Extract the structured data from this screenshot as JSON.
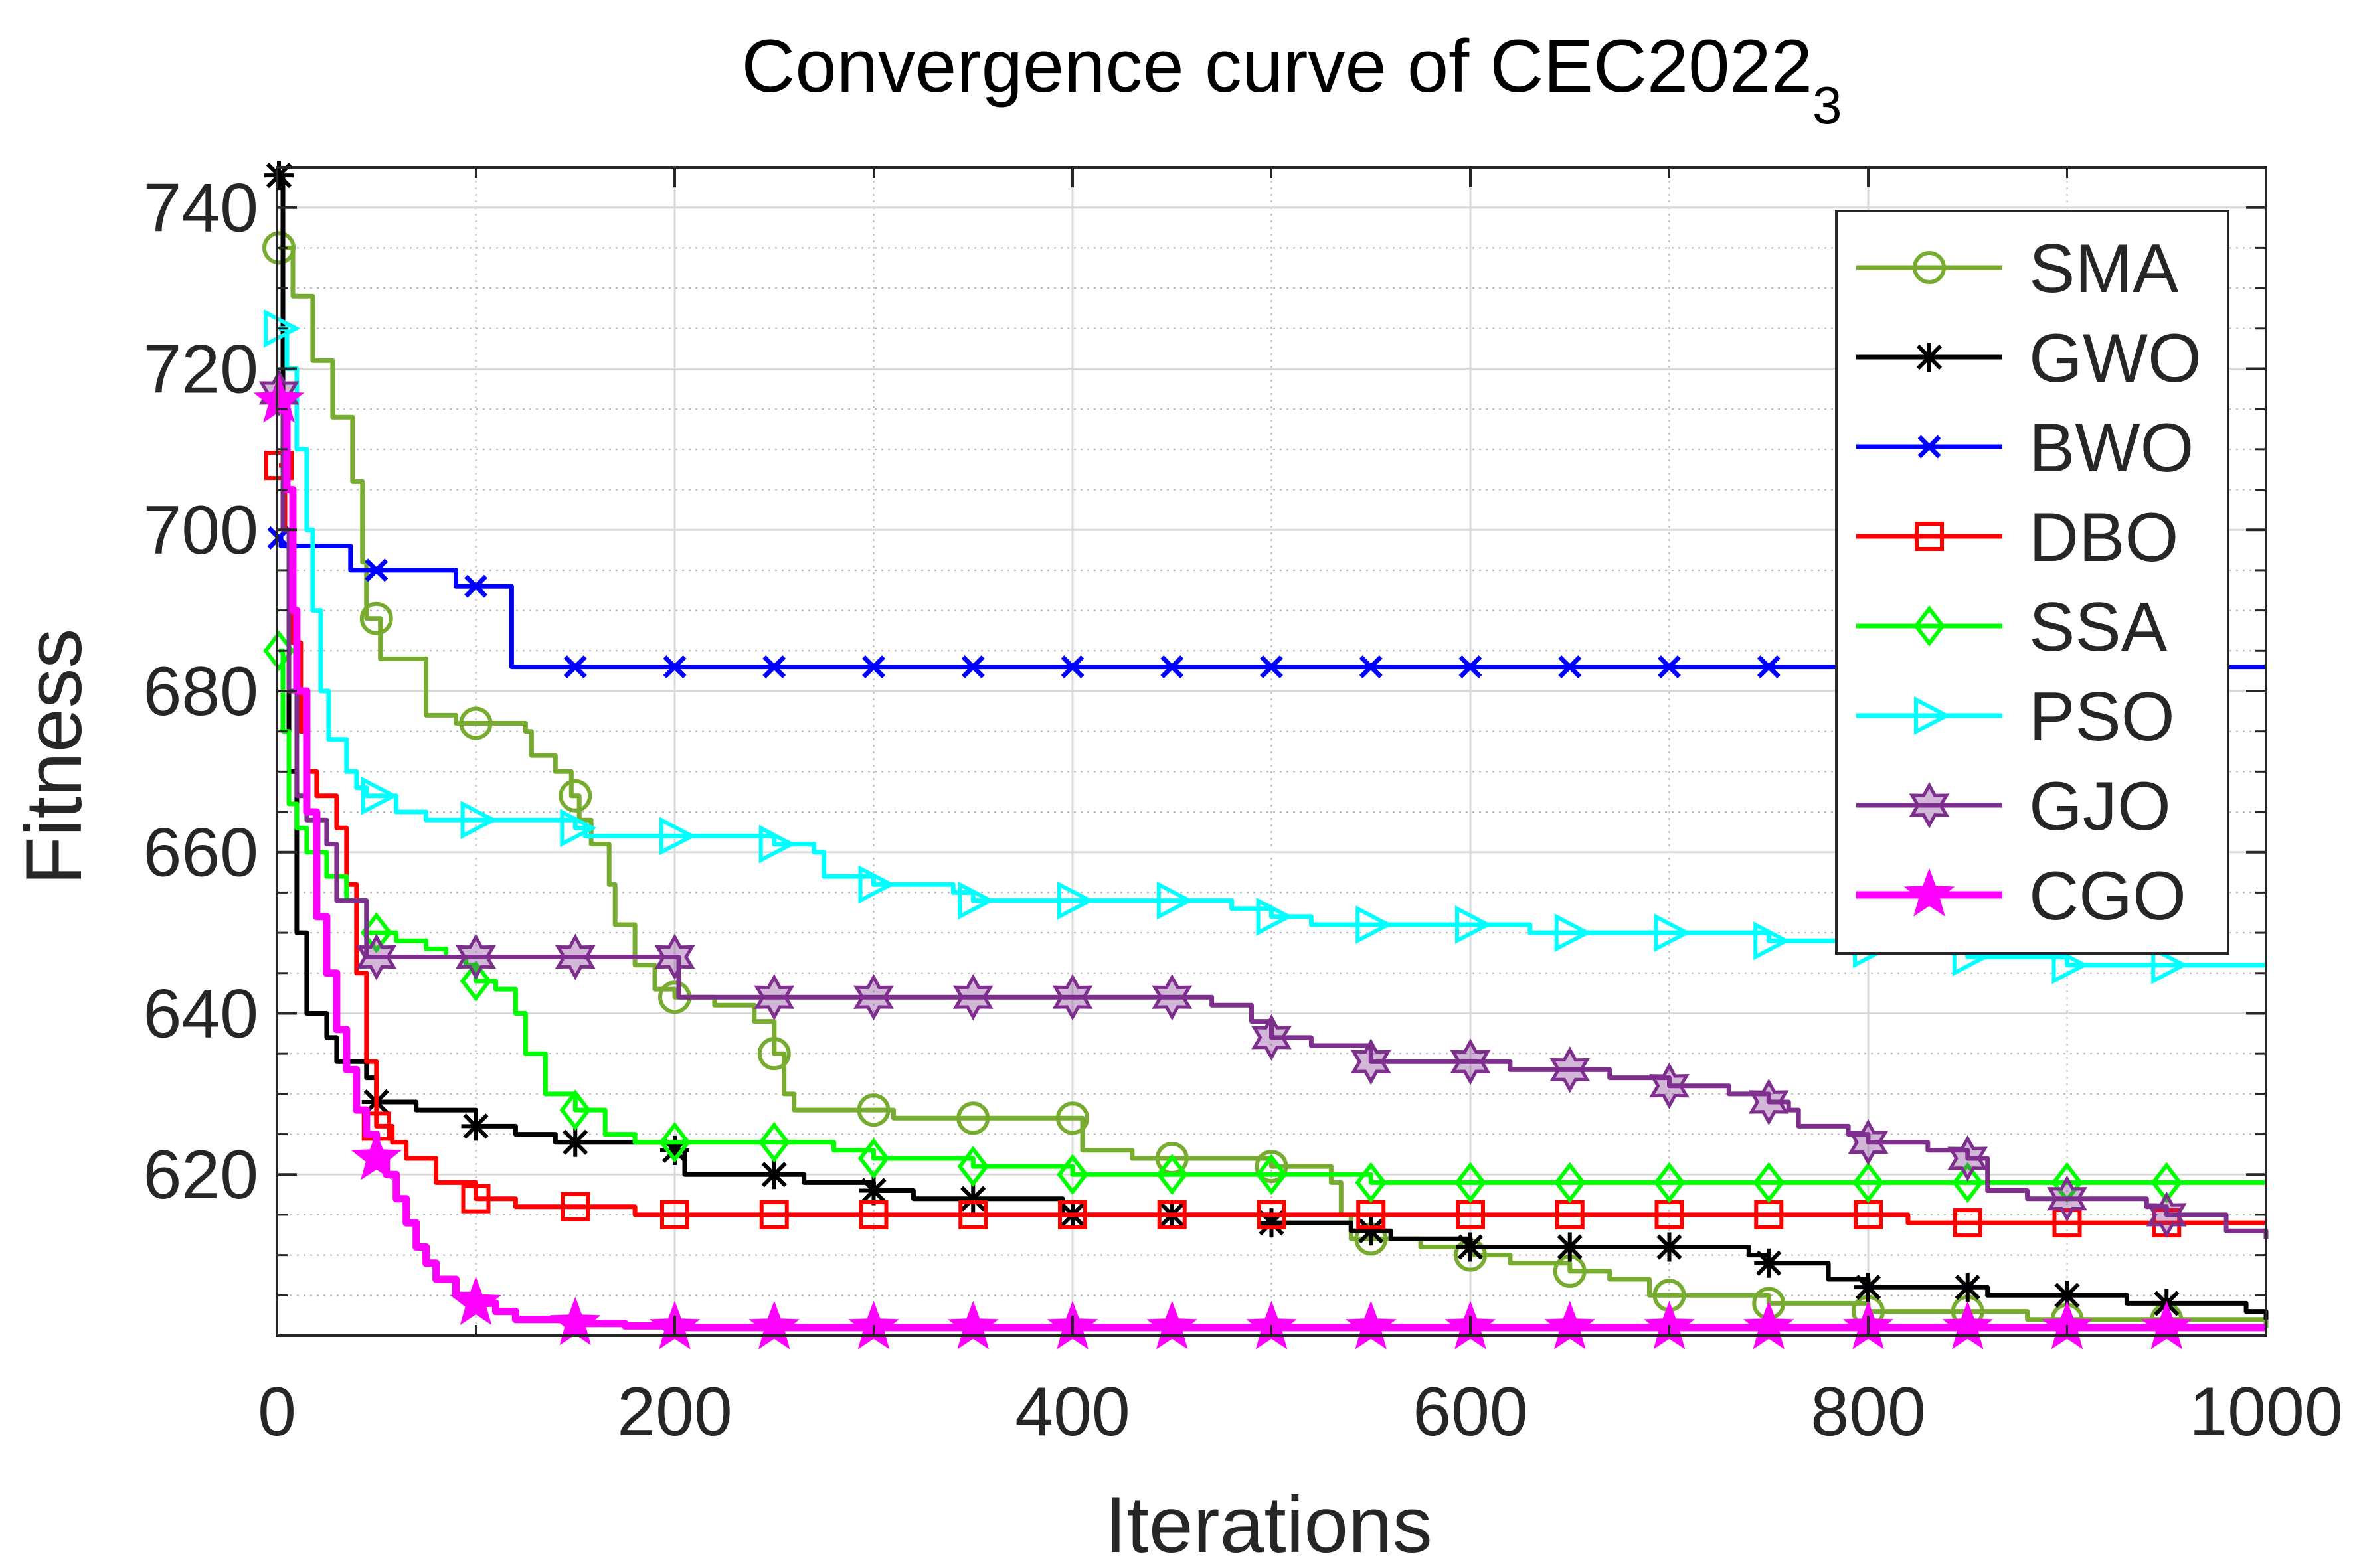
{
  "chart_data": {
    "type": "line",
    "title": "Convergence curve of CEC2022",
    "title_subscript": "3",
    "xlabel": "Iterations",
    "ylabel": "Fitness",
    "xlim": [
      0,
      1000
    ],
    "ylim": [
      600,
      745
    ],
    "xticks": [
      0,
      200,
      400,
      600,
      800,
      1000
    ],
    "yticks": [
      620,
      640,
      660,
      680,
      700,
      720,
      740
    ],
    "grid": true,
    "legend_position": "top-right",
    "series": [
      {
        "name": "SMA",
        "color": "#77AC30",
        "marker": "circle",
        "points": [
          [
            1,
            735
          ],
          [
            8,
            729
          ],
          [
            18,
            721
          ],
          [
            28,
            714
          ],
          [
            38,
            706
          ],
          [
            43,
            696
          ],
          [
            45,
            689
          ],
          [
            52,
            684
          ],
          [
            72,
            684
          ],
          [
            75,
            677
          ],
          [
            90,
            676
          ],
          [
            125,
            675
          ],
          [
            128,
            672
          ],
          [
            140,
            670
          ],
          [
            148,
            667
          ],
          [
            152,
            664
          ],
          [
            158,
            661
          ],
          [
            165,
            661
          ],
          [
            167,
            656
          ],
          [
            170,
            651
          ],
          [
            180,
            646
          ],
          [
            190,
            643
          ],
          [
            200,
            642
          ],
          [
            220,
            641
          ],
          [
            240,
            639
          ],
          [
            250,
            635
          ],
          [
            255,
            630
          ],
          [
            260,
            628
          ],
          [
            300,
            628
          ],
          [
            310,
            627
          ],
          [
            350,
            627
          ],
          [
            400,
            627
          ],
          [
            405,
            623
          ],
          [
            430,
            622
          ],
          [
            450,
            622
          ],
          [
            500,
            621
          ],
          [
            520,
            621
          ],
          [
            530,
            619
          ],
          [
            535,
            615
          ],
          [
            540,
            612
          ],
          [
            560,
            612
          ],
          [
            575,
            611
          ],
          [
            600,
            610
          ],
          [
            620,
            609
          ],
          [
            650,
            608
          ],
          [
            670,
            607
          ],
          [
            690,
            605
          ],
          [
            720,
            605
          ],
          [
            750,
            604
          ],
          [
            780,
            604
          ],
          [
            800,
            603
          ],
          [
            850,
            603
          ],
          [
            880,
            602
          ],
          [
            900,
            602
          ],
          [
            1000,
            601
          ]
        ]
      },
      {
        "name": "GWO",
        "color": "#000000",
        "marker": "asterisk",
        "points": [
          [
            1,
            744
          ],
          [
            3,
            700
          ],
          [
            6,
            670
          ],
          [
            10,
            650
          ],
          [
            15,
            640
          ],
          [
            25,
            637
          ],
          [
            30,
            634
          ],
          [
            45,
            632
          ],
          [
            50,
            629
          ],
          [
            60,
            629
          ],
          [
            70,
            628
          ],
          [
            100,
            626
          ],
          [
            120,
            625
          ],
          [
            140,
            624
          ],
          [
            150,
            624
          ],
          [
            200,
            623
          ],
          [
            205,
            620
          ],
          [
            240,
            620
          ],
          [
            250,
            620
          ],
          [
            265,
            619
          ],
          [
            300,
            618
          ],
          [
            320,
            617
          ],
          [
            350,
            617
          ],
          [
            390,
            617
          ],
          [
            395,
            615
          ],
          [
            450,
            615
          ],
          [
            500,
            614
          ],
          [
            540,
            613
          ],
          [
            560,
            612
          ],
          [
            600,
            611
          ],
          [
            620,
            611
          ],
          [
            650,
            611
          ],
          [
            700,
            611
          ],
          [
            740,
            610
          ],
          [
            750,
            609
          ],
          [
            780,
            607
          ],
          [
            800,
            606
          ],
          [
            850,
            606
          ],
          [
            860,
            605
          ],
          [
            900,
            605
          ],
          [
            930,
            604
          ],
          [
            950,
            604
          ],
          [
            990,
            603
          ],
          [
            1000,
            602
          ]
        ]
      },
      {
        "name": "BWO",
        "color": "#0000FF",
        "marker": "cross",
        "points": [
          [
            1,
            699
          ],
          [
            2,
            698
          ],
          [
            35,
            698
          ],
          [
            37,
            695
          ],
          [
            90,
            693
          ],
          [
            100,
            693
          ],
          [
            117,
            693
          ],
          [
            118,
            683
          ],
          [
            150,
            683
          ],
          [
            200,
            683
          ],
          [
            1000,
            683
          ]
        ]
      },
      {
        "name": "DBO",
        "color": "#FF0000",
        "marker": "square",
        "points": [
          [
            1,
            708
          ],
          [
            4,
            700
          ],
          [
            8,
            686
          ],
          [
            12,
            675
          ],
          [
            15,
            670
          ],
          [
            20,
            667
          ],
          [
            25,
            667
          ],
          [
            30,
            663
          ],
          [
            35,
            656
          ],
          [
            40,
            645
          ],
          [
            45,
            634
          ],
          [
            50,
            626
          ],
          [
            58,
            624
          ],
          [
            65,
            622
          ],
          [
            80,
            619
          ],
          [
            100,
            617
          ],
          [
            120,
            616
          ],
          [
            150,
            616
          ],
          [
            180,
            615
          ],
          [
            200,
            615
          ],
          [
            250,
            615
          ],
          [
            300,
            615
          ],
          [
            400,
            615
          ],
          [
            500,
            615
          ],
          [
            600,
            615
          ],
          [
            800,
            615
          ],
          [
            820,
            614
          ],
          [
            850,
            614
          ],
          [
            1000,
            614
          ]
        ]
      },
      {
        "name": "SSA",
        "color": "#00FF00",
        "marker": "diamond",
        "points": [
          [
            1,
            685
          ],
          [
            3,
            675
          ],
          [
            6,
            666
          ],
          [
            10,
            663
          ],
          [
            15,
            660
          ],
          [
            25,
            657
          ],
          [
            35,
            654
          ],
          [
            45,
            650
          ],
          [
            50,
            650
          ],
          [
            60,
            649
          ],
          [
            75,
            648
          ],
          [
            85,
            647
          ],
          [
            95,
            646
          ],
          [
            100,
            644
          ],
          [
            110,
            643
          ],
          [
            120,
            640
          ],
          [
            125,
            635
          ],
          [
            135,
            630
          ],
          [
            150,
            628
          ],
          [
            165,
            625
          ],
          [
            180,
            624
          ],
          [
            200,
            624
          ],
          [
            230,
            624
          ],
          [
            250,
            624
          ],
          [
            280,
            623
          ],
          [
            300,
            622
          ],
          [
            350,
            621
          ],
          [
            380,
            621
          ],
          [
            400,
            620
          ],
          [
            430,
            620
          ],
          [
            460,
            620
          ],
          [
            500,
            620
          ],
          [
            530,
            620
          ],
          [
            545,
            620
          ],
          [
            550,
            619
          ],
          [
            1000,
            619
          ]
        ]
      },
      {
        "name": "PSO",
        "color": "#00FFFF",
        "marker": "triangle-right",
        "points": [
          [
            1,
            725
          ],
          [
            5,
            720
          ],
          [
            10,
            710
          ],
          [
            15,
            700
          ],
          [
            18,
            690
          ],
          [
            22,
            680
          ],
          [
            26,
            674
          ],
          [
            35,
            670
          ],
          [
            40,
            668
          ],
          [
            45,
            667
          ],
          [
            60,
            665
          ],
          [
            75,
            664
          ],
          [
            100,
            664
          ],
          [
            150,
            663
          ],
          [
            155,
            662
          ],
          [
            200,
            662
          ],
          [
            250,
            661
          ],
          [
            270,
            660
          ],
          [
            275,
            657
          ],
          [
            300,
            656
          ],
          [
            320,
            656
          ],
          [
            340,
            655
          ],
          [
            350,
            654
          ],
          [
            400,
            654
          ],
          [
            450,
            654
          ],
          [
            480,
            653
          ],
          [
            500,
            652
          ],
          [
            520,
            651
          ],
          [
            550,
            651
          ],
          [
            600,
            651
          ],
          [
            630,
            650
          ],
          [
            650,
            650
          ],
          [
            700,
            650
          ],
          [
            750,
            649
          ],
          [
            800,
            648
          ],
          [
            850,
            647
          ],
          [
            900,
            646
          ],
          [
            950,
            646
          ],
          [
            1000,
            646
          ]
        ]
      },
      {
        "name": "GJO",
        "color": "#7E2F8E",
        "marker": "hexagram",
        "points": [
          [
            1,
            717
          ],
          [
            3,
            700
          ],
          [
            6,
            680
          ],
          [
            10,
            667
          ],
          [
            15,
            664
          ],
          [
            20,
            664
          ],
          [
            25,
            661
          ],
          [
            30,
            654
          ],
          [
            40,
            654
          ],
          [
            45,
            647
          ],
          [
            100,
            647
          ],
          [
            150,
            647
          ],
          [
            200,
            647
          ],
          [
            202,
            642
          ],
          [
            250,
            642
          ],
          [
            300,
            642
          ],
          [
            350,
            642
          ],
          [
            400,
            642
          ],
          [
            450,
            642
          ],
          [
            470,
            641
          ],
          [
            490,
            639
          ],
          [
            500,
            637
          ],
          [
            520,
            636
          ],
          [
            540,
            636
          ],
          [
            550,
            634
          ],
          [
            600,
            634
          ],
          [
            620,
            633
          ],
          [
            650,
            633
          ],
          [
            670,
            632
          ],
          [
            700,
            631
          ],
          [
            730,
            630
          ],
          [
            750,
            629
          ],
          [
            760,
            628
          ],
          [
            765,
            626
          ],
          [
            790,
            625
          ],
          [
            800,
            624
          ],
          [
            830,
            623
          ],
          [
            850,
            622
          ],
          [
            860,
            618
          ],
          [
            880,
            617
          ],
          [
            900,
            617
          ],
          [
            940,
            616
          ],
          [
            950,
            615
          ],
          [
            980,
            613
          ],
          [
            1000,
            612
          ]
        ]
      },
      {
        "name": "CGO",
        "color": "#FF00FF",
        "marker": "pentagram",
        "points": [
          [
            1,
            716
          ],
          [
            5,
            705
          ],
          [
            8,
            690
          ],
          [
            10,
            680
          ],
          [
            15,
            665
          ],
          [
            20,
            652
          ],
          [
            25,
            645
          ],
          [
            30,
            638
          ],
          [
            35,
            633
          ],
          [
            40,
            628
          ],
          [
            45,
            625
          ],
          [
            50,
            622
          ],
          [
            55,
            620
          ],
          [
            60,
            617
          ],
          [
            65,
            614
          ],
          [
            70,
            611
          ],
          [
            75,
            609
          ],
          [
            80,
            607
          ],
          [
            90,
            605
          ],
          [
            100,
            604
          ],
          [
            110,
            603
          ],
          [
            120,
            602
          ],
          [
            135,
            602
          ],
          [
            150,
            601.5
          ],
          [
            175,
            601.2
          ],
          [
            200,
            601
          ],
          [
            300,
            601
          ],
          [
            400,
            601
          ],
          [
            600,
            601
          ],
          [
            800,
            601
          ],
          [
            1000,
            601
          ]
        ]
      }
    ]
  }
}
